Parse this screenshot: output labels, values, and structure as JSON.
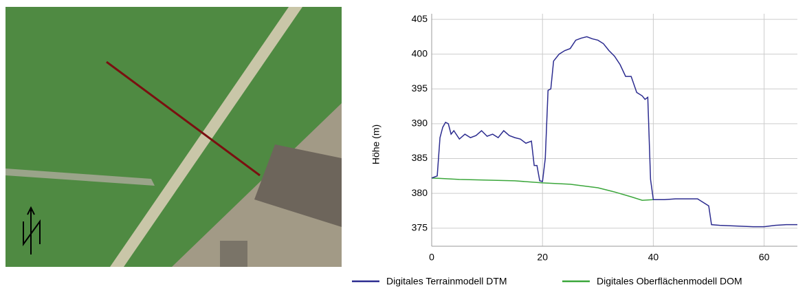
{
  "chart_data": {
    "type": "line",
    "y_label": "Höhe (m)",
    "xlim": [
      0,
      66
    ],
    "ylim": [
      372.4,
      405.8
    ],
    "xticks": [
      0,
      20,
      40,
      60
    ],
    "yticks": [
      375,
      380,
      385,
      390,
      395,
      400,
      405
    ],
    "grid": true,
    "series": [
      {
        "name": "Digitales Terrainmodell DTM",
        "color": "#2b2b8f",
        "x": [
          0,
          1,
          1.5,
          2,
          2.5,
          3,
          3.5,
          4,
          5,
          6,
          7,
          8,
          9,
          10,
          11,
          12,
          13,
          14,
          15,
          16,
          17,
          18,
          18.5,
          19,
          19.5,
          20,
          20.5,
          21,
          21.5,
          22,
          23,
          24,
          25,
          26,
          27,
          28,
          29,
          30,
          31,
          32,
          33,
          34,
          35,
          36,
          37,
          38,
          38.5,
          39,
          39.5,
          40,
          42,
          44,
          46,
          48,
          50,
          50.5,
          52,
          55,
          58,
          60,
          62,
          64,
          66
        ],
        "values": [
          382.2,
          382.5,
          388,
          389.5,
          390.2,
          390,
          388.5,
          389,
          387.8,
          388.5,
          388,
          388.3,
          389,
          388.2,
          388.5,
          388,
          389,
          388.3,
          388,
          387.8,
          387.2,
          387.5,
          384,
          384,
          381.8,
          381.7,
          385,
          394.8,
          395,
          399,
          400,
          400.5,
          400.8,
          402,
          402.3,
          402.5,
          402.2,
          402,
          401.5,
          400.5,
          399.7,
          398.5,
          396.8,
          396.8,
          394.5,
          394,
          393.5,
          393.8,
          382,
          379.1,
          379.1,
          379.2,
          379.2,
          379.2,
          378.2,
          375.5,
          375.4,
          375.3,
          375.2,
          375.2,
          375.4,
          375.5,
          375.5
        ]
      },
      {
        "name": "Digitales Oberflächenmodell DOM",
        "color": "#3aa63a",
        "x": [
          0,
          5,
          10,
          15,
          20,
          25,
          30,
          33,
          36,
          38,
          40
        ],
        "values": [
          382.2,
          382,
          381.9,
          381.8,
          381.5,
          381.3,
          380.8,
          380.2,
          379.5,
          379,
          379.1
        ]
      }
    ]
  }
}
